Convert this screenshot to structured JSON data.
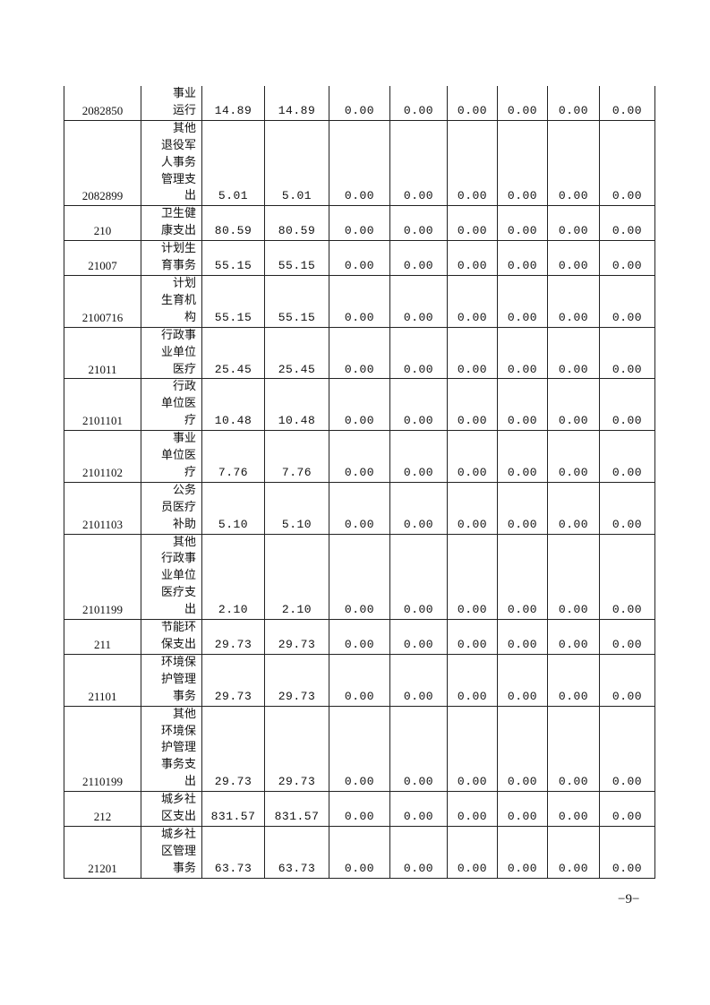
{
  "rows": [
    {
      "code": "2082850",
      "name": "事业\n运行",
      "values": [
        "14.89",
        "14.89",
        "0.00",
        "0.00",
        "0.00",
        "0.00",
        "0.00",
        "0.00"
      ]
    },
    {
      "code": "2082899",
      "name": "其他\n退役军\n人事务\n管理支\n出",
      "values": [
        "5.01",
        "5.01",
        "0.00",
        "0.00",
        "0.00",
        "0.00",
        "0.00",
        "0.00"
      ]
    },
    {
      "code": "210",
      "name": "卫生健\n康支出",
      "values": [
        "80.59",
        "80.59",
        "0.00",
        "0.00",
        "0.00",
        "0.00",
        "0.00",
        "0.00"
      ]
    },
    {
      "code": "21007",
      "name": "计划生\n育事务",
      "values": [
        "55.15",
        "55.15",
        "0.00",
        "0.00",
        "0.00",
        "0.00",
        "0.00",
        "0.00"
      ]
    },
    {
      "code": "2100716",
      "name": "计划\n生育机\n构",
      "values": [
        "55.15",
        "55.15",
        "0.00",
        "0.00",
        "0.00",
        "0.00",
        "0.00",
        "0.00"
      ]
    },
    {
      "code": "21011",
      "name": "行政事\n业单位\n医疗",
      "values": [
        "25.45",
        "25.45",
        "0.00",
        "0.00",
        "0.00",
        "0.00",
        "0.00",
        "0.00"
      ]
    },
    {
      "code": "2101101",
      "name": "行政\n单位医\n疗",
      "values": [
        "10.48",
        "10.48",
        "0.00",
        "0.00",
        "0.00",
        "0.00",
        "0.00",
        "0.00"
      ]
    },
    {
      "code": "2101102",
      "name": "事业\n单位医\n疗",
      "values": [
        "7.76",
        "7.76",
        "0.00",
        "0.00",
        "0.00",
        "0.00",
        "0.00",
        "0.00"
      ]
    },
    {
      "code": "2101103",
      "name": "公务\n员医疗\n补助",
      "values": [
        "5.10",
        "5.10",
        "0.00",
        "0.00",
        "0.00",
        "0.00",
        "0.00",
        "0.00"
      ]
    },
    {
      "code": "2101199",
      "name": "其他\n行政事\n业单位\n医疗支\n出",
      "values": [
        "2.10",
        "2.10",
        "0.00",
        "0.00",
        "0.00",
        "0.00",
        "0.00",
        "0.00"
      ]
    },
    {
      "code": "211",
      "name": "节能环\n保支出",
      "values": [
        "29.73",
        "29.73",
        "0.00",
        "0.00",
        "0.00",
        "0.00",
        "0.00",
        "0.00"
      ]
    },
    {
      "code": "21101",
      "name": "环境保\n护管理\n事务",
      "values": [
        "29.73",
        "29.73",
        "0.00",
        "0.00",
        "0.00",
        "0.00",
        "0.00",
        "0.00"
      ]
    },
    {
      "code": "2110199",
      "name": "其他\n环境保\n护管理\n事务支\n出",
      "values": [
        "29.73",
        "29.73",
        "0.00",
        "0.00",
        "0.00",
        "0.00",
        "0.00",
        "0.00"
      ]
    },
    {
      "code": "212",
      "name": "城乡社\n区支出",
      "values": [
        "831.57",
        "831.57",
        "0.00",
        "0.00",
        "0.00",
        "0.00",
        "0.00",
        "0.00"
      ]
    },
    {
      "code": "21201",
      "name": "城乡社\n区管理\n事务",
      "values": [
        "63.73",
        "63.73",
        "0.00",
        "0.00",
        "0.00",
        "0.00",
        "0.00",
        "0.00"
      ]
    }
  ],
  "page_number": "−9−"
}
